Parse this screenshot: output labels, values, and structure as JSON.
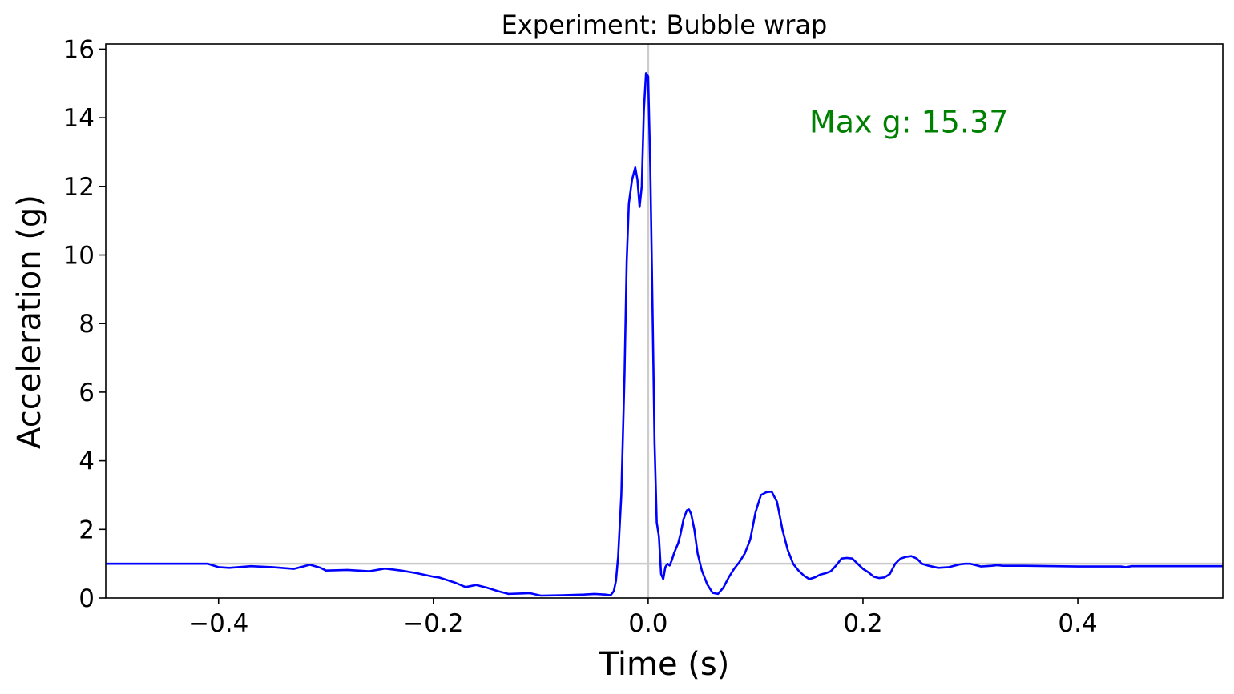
{
  "chart_data": {
    "type": "line",
    "title": "Experiment: Bubble wrap",
    "xlabel": "Time (s)",
    "ylabel": "Acceleration (g)",
    "xlim": [
      -0.505,
      0.535
    ],
    "ylim": [
      0,
      16.15
    ],
    "x_ticks": [
      -0.4,
      -0.2,
      0.0,
      0.2,
      0.4
    ],
    "x_tick_labels": [
      "−0.4",
      "−0.2",
      "0.0",
      "0.2",
      "0.4"
    ],
    "y_ticks": [
      0,
      2,
      4,
      6,
      8,
      10,
      12,
      14,
      16
    ],
    "y_tick_labels": [
      "0",
      "2",
      "4",
      "6",
      "8",
      "10",
      "12",
      "14",
      "16"
    ],
    "grid": false,
    "reference_lines": {
      "vertical_x": 0.0,
      "horizontal_y": 1.0,
      "color": "#cccccc"
    },
    "annotation": {
      "text": "Max g: 15.37",
      "x": 0.15,
      "y": 13.9,
      "color": "#008000"
    },
    "series": [
      {
        "color": "#0000ff",
        "x": [
          -0.505,
          -0.45,
          -0.41,
          -0.4,
          -0.39,
          -0.37,
          -0.35,
          -0.33,
          -0.315,
          -0.305,
          -0.3,
          -0.28,
          -0.26,
          -0.245,
          -0.23,
          -0.215,
          -0.2,
          -0.195,
          -0.19,
          -0.18,
          -0.17,
          -0.16,
          -0.15,
          -0.14,
          -0.13,
          -0.12,
          -0.11,
          -0.1,
          -0.08,
          -0.06,
          -0.05,
          -0.04,
          -0.035,
          -0.032,
          -0.03,
          -0.028,
          -0.025,
          -0.022,
          -0.02,
          -0.018,
          -0.015,
          -0.012,
          -0.01,
          -0.008,
          -0.006,
          -0.004,
          -0.002,
          0.0,
          0.002,
          0.004,
          0.006,
          0.008,
          0.01,
          0.012,
          0.014,
          0.016,
          0.018,
          0.02,
          0.022,
          0.024,
          0.026,
          0.028,
          0.03,
          0.033,
          0.036,
          0.038,
          0.04,
          0.043,
          0.046,
          0.05,
          0.055,
          0.06,
          0.065,
          0.07,
          0.075,
          0.08,
          0.085,
          0.09,
          0.095,
          0.1,
          0.105,
          0.11,
          0.115,
          0.12,
          0.125,
          0.13,
          0.135,
          0.14,
          0.145,
          0.15,
          0.155,
          0.16,
          0.165,
          0.17,
          0.175,
          0.18,
          0.185,
          0.19,
          0.195,
          0.2,
          0.205,
          0.21,
          0.215,
          0.22,
          0.225,
          0.23,
          0.235,
          0.24,
          0.245,
          0.25,
          0.255,
          0.26,
          0.27,
          0.28,
          0.29,
          0.295,
          0.3,
          0.31,
          0.32,
          0.325,
          0.33,
          0.35,
          0.4,
          0.44,
          0.445,
          0.45,
          0.5,
          0.535
        ],
        "y": [
          1.0,
          1.0,
          1.0,
          0.9,
          0.88,
          0.93,
          0.9,
          0.85,
          0.97,
          0.88,
          0.8,
          0.82,
          0.78,
          0.86,
          0.8,
          0.72,
          0.62,
          0.6,
          0.55,
          0.45,
          0.32,
          0.38,
          0.3,
          0.2,
          0.12,
          0.13,
          0.14,
          0.07,
          0.08,
          0.1,
          0.12,
          0.1,
          0.08,
          0.2,
          0.5,
          1.2,
          3.0,
          6.5,
          9.8,
          11.5,
          12.2,
          12.55,
          12.2,
          11.4,
          12.0,
          14.2,
          15.3,
          15.2,
          12.5,
          8.5,
          4.5,
          2.2,
          1.8,
          0.7,
          0.55,
          0.9,
          1.0,
          0.95,
          1.1,
          1.3,
          1.45,
          1.6,
          1.85,
          2.3,
          2.55,
          2.58,
          2.45,
          2.0,
          1.3,
          0.8,
          0.4,
          0.15,
          0.12,
          0.3,
          0.6,
          0.85,
          1.05,
          1.3,
          1.7,
          2.5,
          3.0,
          3.08,
          3.1,
          2.8,
          2.0,
          1.4,
          1.0,
          0.8,
          0.65,
          0.55,
          0.6,
          0.68,
          0.72,
          0.78,
          0.95,
          1.15,
          1.17,
          1.15,
          1.0,
          0.85,
          0.75,
          0.62,
          0.58,
          0.6,
          0.7,
          1.0,
          1.15,
          1.2,
          1.22,
          1.15,
          1.0,
          0.95,
          0.88,
          0.9,
          0.98,
          1.0,
          1.0,
          0.92,
          0.94,
          0.96,
          0.94,
          0.94,
          0.92,
          0.92,
          0.9,
          0.93,
          0.93,
          0.93
        ]
      }
    ]
  }
}
